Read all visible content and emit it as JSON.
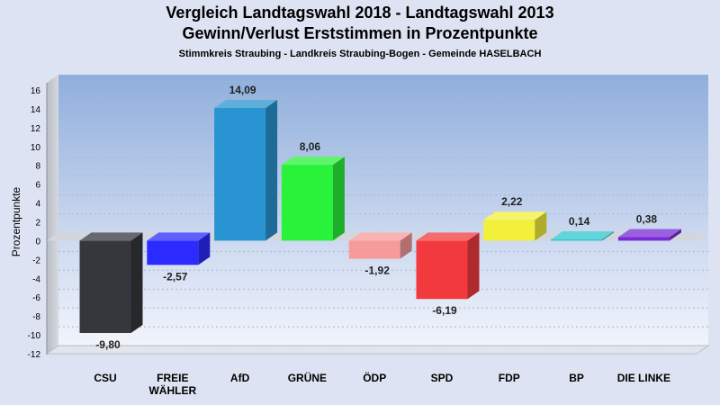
{
  "header": {
    "title_line1": "Vergleich Landtagswahl 2018 - Landtagswahl 2013",
    "title_line2": "Gewinn/Verlust Erststimmen in Prozentpunkte",
    "subtitle": "Stimmkreis Straubing - Landkreis Straubing-Bogen - Gemeinde HASELBACH"
  },
  "chart_data": {
    "type": "bar",
    "title": "Vergleich Landtagswahl 2018 - Landtagswahl 2013 / Gewinn/Verlust Erststimmen in Prozentpunkte",
    "subtitle": "Stimmkreis Straubing - Landkreis Straubing-Bogen - Gemeinde HASELBACH",
    "xlabel": "",
    "ylabel": "Prozentpunkte",
    "ylim": [
      -12,
      16
    ],
    "yticks": [
      16,
      14,
      12,
      10,
      8,
      6,
      4,
      2,
      0,
      -2,
      -4,
      -6,
      -8,
      -10,
      -12
    ],
    "categories": [
      "CSU",
      "FREIE WÄHLER",
      "AfD",
      "GRÜNE",
      "ÖDP",
      "SPD",
      "FDP",
      "BP",
      "DIE LINKE"
    ],
    "category_lines": [
      [
        "CSU"
      ],
      [
        "FREIE",
        "WÄHLER"
      ],
      [
        "AfD"
      ],
      [
        "GRÜNE"
      ],
      [
        "ÖDP"
      ],
      [
        "SPD"
      ],
      [
        "FDP"
      ],
      [
        "BP"
      ],
      [
        "DIE LINKE"
      ]
    ],
    "values": [
      -9.8,
      -2.57,
      14.09,
      8.06,
      -1.92,
      -6.19,
      2.22,
      0.14,
      0.38
    ],
    "value_labels": [
      "-9,80",
      "-2,57",
      "14,09",
      "8,06",
      "-1,92",
      "-6,19",
      "2,22",
      "0,14",
      "0,38"
    ],
    "colors": [
      "#35373d",
      "#2b2bff",
      "#2994d2",
      "#29f23a",
      "#f79a9a",
      "#f23a3e",
      "#f2f03a",
      "#2dc6ce",
      "#7a2bd6"
    ],
    "grid": true,
    "legend": "none"
  }
}
